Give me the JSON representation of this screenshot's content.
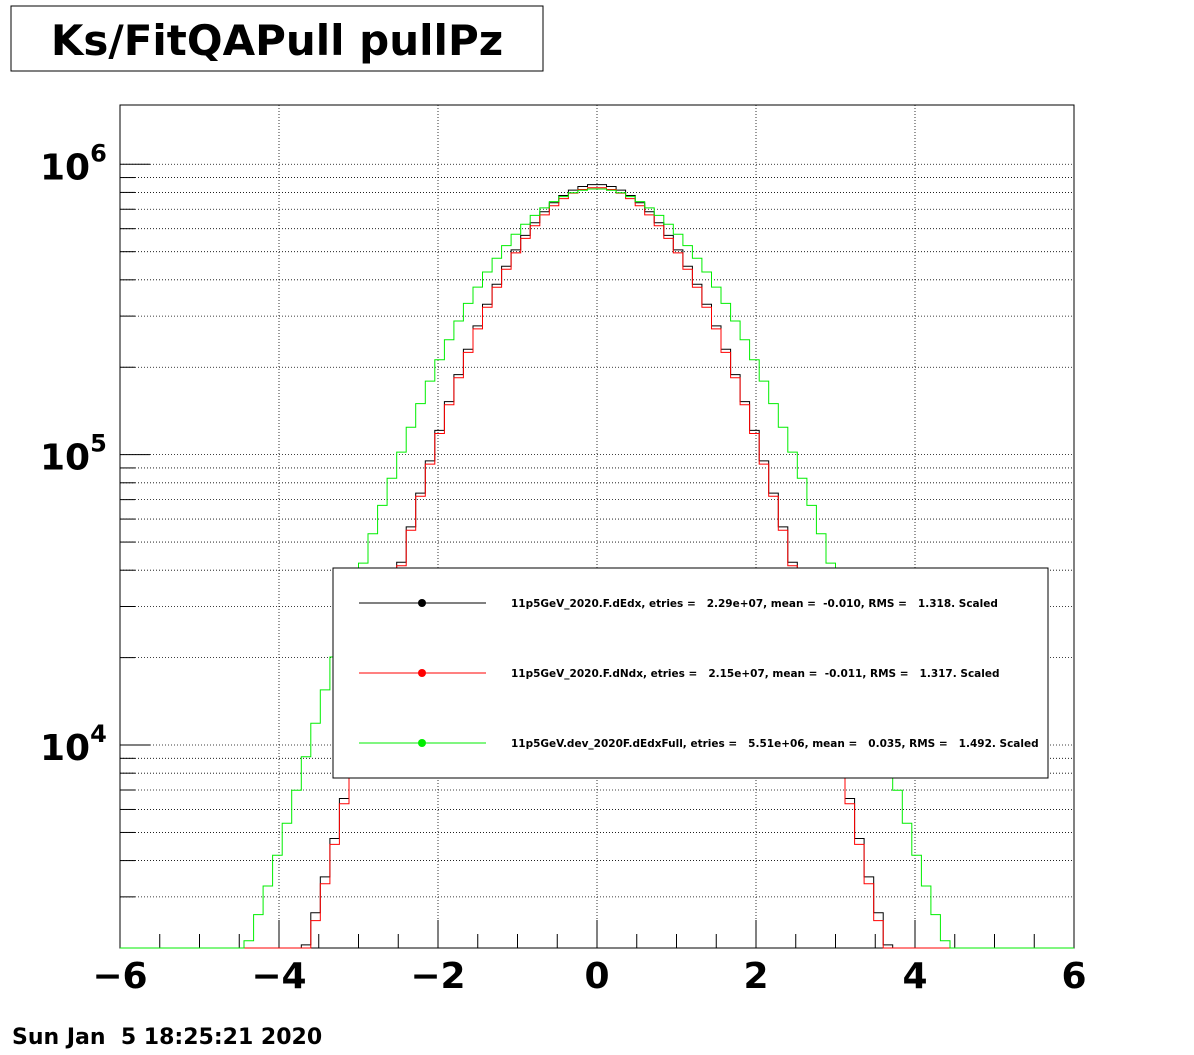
{
  "chart_data": {
    "type": "line",
    "title": "Ks/FitQAPull pullPz",
    "xlabel": "",
    "ylabel": "",
    "xlim": [
      -6,
      6
    ],
    "ylim": [
      2000,
      1600000
    ],
    "y_scale": "log",
    "grid": true,
    "x_ticks": [
      {
        "value": -6,
        "label": "−6"
      },
      {
        "value": -4,
        "label": "−4"
      },
      {
        "value": -2,
        "label": "−2"
      },
      {
        "value": 0,
        "label": "0"
      },
      {
        "value": 2,
        "label": "2"
      },
      {
        "value": 4,
        "label": "4"
      },
      {
        "value": 6,
        "label": "6"
      }
    ],
    "y_ticks": [
      {
        "value": 10000,
        "base": "10",
        "exp": "4"
      },
      {
        "value": 100000,
        "base": "10",
        "exp": "5"
      },
      {
        "value": 1000000,
        "base": "10",
        "exp": "6"
      }
    ],
    "legend": {
      "position": "lower-center",
      "entries": [
        {
          "label": "11p5GeV_2020.F.dEdx, etries =   2.29e+07, mean =  -0.010, RMS =   1.318. Scaled",
          "color": "#000000"
        },
        {
          "label": "11p5GeV_2020.F.dNdx, etries =   2.15e+07, mean =  -0.011, RMS =   1.317. Scaled",
          "color": "#ff0000"
        },
        {
          "label": "11p5GeV.dev_2020F.dEdxFull, etries =   5.51e+06, mean =   0.035, RMS =   1.492. Scaled",
          "color": "#00ee00"
        }
      ]
    },
    "series": [
      {
        "color": "#000000",
        "sigma": 1.0,
        "peak": 850000,
        "tail_amp": 2500,
        "tail_width": 4.0
      },
      {
        "color": "#ff0000",
        "sigma": 1.0,
        "peak": 830000,
        "tail_amp": 2200,
        "tail_width": 4.0
      },
      {
        "color": "#00ee00",
        "sigma": 1.2,
        "peak": 820000,
        "tail_amp": 3200,
        "tail_width": 4.0
      }
    ],
    "bins": {
      "count": 100,
      "min": -6,
      "max": 6
    }
  },
  "footer": {
    "date": "Sun Jan  5 18:25:21 2020"
  }
}
